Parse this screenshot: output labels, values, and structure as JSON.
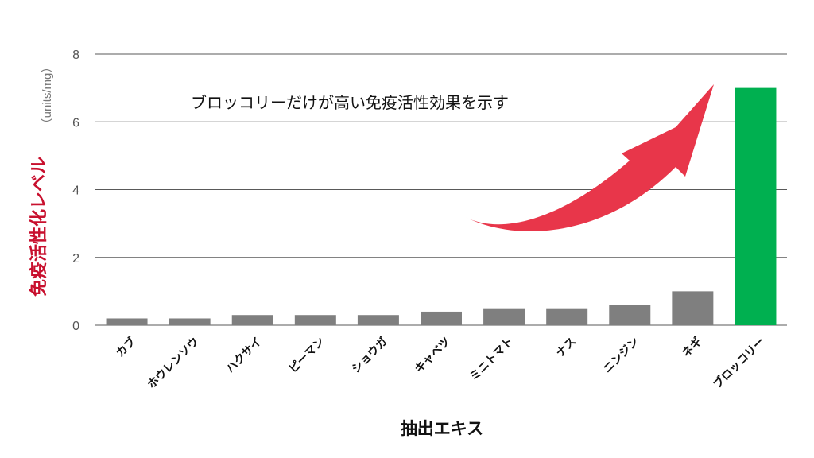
{
  "chart_data": {
    "type": "bar",
    "title": "",
    "xlabel": "抽出エキス",
    "ylabel": "免疫活性化レベル",
    "ylabel_unit": "（units/mg）",
    "ylim": [
      0,
      8
    ],
    "yticks": [
      0,
      2,
      4,
      6,
      8
    ],
    "grid": true,
    "categories": [
      "カブ",
      "ホウレンソウ",
      "ハクサイ",
      "ピーマン",
      "ショウガ",
      "キャベツ",
      "ミニトマト",
      "ナス",
      "ニンジン",
      "ネギ",
      "ブロッコリー"
    ],
    "values": [
      0.2,
      0.2,
      0.3,
      0.3,
      0.3,
      0.4,
      0.5,
      0.5,
      0.6,
      1.0,
      7.0
    ],
    "bar_colors": [
      "#7f7f7f",
      "#7f7f7f",
      "#7f7f7f",
      "#7f7f7f",
      "#7f7f7f",
      "#7f7f7f",
      "#7f7f7f",
      "#7f7f7f",
      "#7f7f7f",
      "#7f7f7f",
      "#00b050"
    ],
    "annotation": {
      "text": "ブロッコリーだけが高い免疫活性効果を示す",
      "arrow_color": "#e8364a",
      "arrow_icon": "curved-arrow-up-right-icon"
    },
    "colors": {
      "ylabel": "#c8102e",
      "gridline": "#595959",
      "axis_text": "#555555"
    }
  }
}
